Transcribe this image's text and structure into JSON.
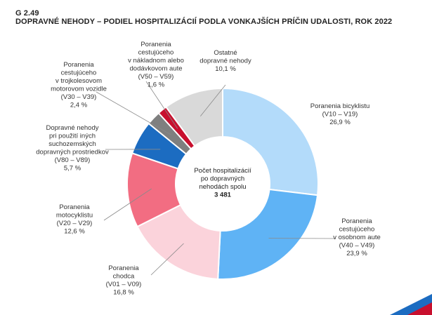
{
  "figure": {
    "code": "G 2.49",
    "title": "DOPRAVNÉ NEHODY – PODIEL HOSPITALIZÁCIÍ PODLA VONKAJŠÍCH PRÍČIN UDALOSTI, ROK 2022"
  },
  "chart_data": {
    "type": "donut",
    "center_label": [
      "Počet hospitalizácií",
      "po dopravných",
      "nehodách spolu"
    ],
    "center_value": "3  481",
    "series": [
      {
        "label": [
          "Poranenia  bicyklistu",
          "(V10 – V19)",
          "26,9  %"
        ],
        "value": 26.9,
        "color": "#b3dbfa"
      },
      {
        "label": [
          "Poranenia",
          "cestujúceho",
          "v osobnom aute",
          "(V40 – V49)",
          "23,9 %"
        ],
        "value": 23.9,
        "color": "#5fb3f5"
      },
      {
        "label": [
          "Poranenia",
          "chodca",
          "(V01 –  V09)",
          "16,8 %"
        ],
        "value": 16.8,
        "color": "#fbd3db"
      },
      {
        "label": [
          "Poranenia",
          "motocyklistu",
          "(V20 – V29)",
          "12,6 %"
        ],
        "value": 12.6,
        "color": "#f26d82"
      },
      {
        "label": [
          "Dopravné nehody",
          "pri použití iných",
          "suchozemských",
          "dopravných prostriedkov",
          "(V80 – V89)",
          "5,7 %"
        ],
        "value": 5.7,
        "color": "#1c6cc1"
      },
      {
        "label": [
          "Poranenia",
          "cestujúceho",
          "v trojkolesovom",
          "motorovom  vozidle",
          "(V30 – V39)",
          "2,4  %"
        ],
        "value": 2.4,
        "color": "#7f7f7f"
      },
      {
        "label": [
          "Poranenia",
          "cestujúceho",
          "v nákladnom alebo",
          "dodávkovom aute",
          "(V50 – V59)",
          "1,6  %"
        ],
        "value": 1.6,
        "color": "#c8102e"
      },
      {
        "label": [
          "Ostatné",
          "dopravné nehody",
          "10,1  %"
        ],
        "value": 10.1,
        "color": "#d9d9d9"
      }
    ]
  }
}
